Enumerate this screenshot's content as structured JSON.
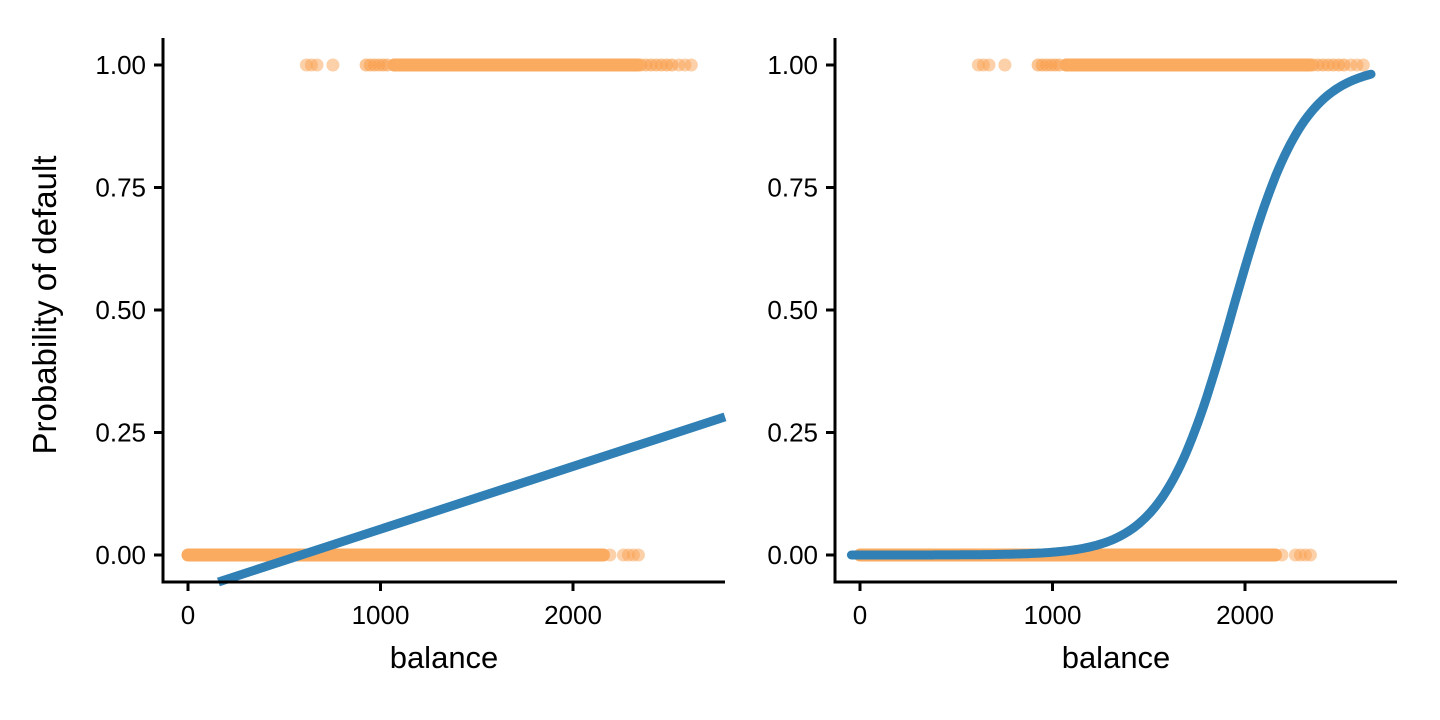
{
  "figure": {
    "description": "Two-panel scatter plot of default probability versus balance with fitted regression curves",
    "background": "#ffffff"
  },
  "colors": {
    "points_orange": "#F9A152",
    "points_dense_orange": "#FAAB5F",
    "fit_blue": "#3080B5",
    "axis_black": "#000000"
  },
  "chart_data": {
    "type": "scatter",
    "shared": {
      "xlabel": "balance",
      "ylabel": "Probability of default",
      "xlim": [
        -130,
        2790
      ],
      "ylim": [
        -0.055,
        1.055
      ],
      "xticks": {
        "values": [
          0,
          1000,
          2000
        ],
        "labels": [
          "0",
          "1000",
          "2000"
        ]
      },
      "yticks": {
        "values": [
          0,
          0.25,
          0.5,
          0.75,
          1
        ],
        "labels": [
          "0.00",
          "0.25",
          "0.50",
          "0.75",
          "1.00"
        ]
      },
      "grid": "off",
      "legend": "none",
      "points": {
        "defaulters": {
          "y": 1,
          "dense": [
            [
              1070,
              2338
            ]
          ],
          "clusters": [
            {
              "range": [
                925,
                1045
              ],
              "step": 22
            },
            {
              "range": [
                2352,
                2516
              ],
              "step": 27
            }
          ],
          "singles": [
            615,
            641,
            670,
            753,
            2550,
            2582,
            2615
          ]
        },
        "non_defaulters": {
          "y": 0,
          "dense": [
            [
              0,
              2158
            ]
          ],
          "clusters": [],
          "singles": [
            2192,
            2262,
            2288,
            2314,
            2340
          ]
        }
      }
    },
    "panels": [
      {
        "name": "linear",
        "fit": {
          "model": "linear",
          "intercept": -0.0752,
          "slope": 0.000128,
          "draw_range": [
            158,
            2790
          ]
        }
      },
      {
        "name": "logistic",
        "fit": {
          "model": "logistic",
          "beta0": -10.65,
          "beta1": 0.0055,
          "draw_range": [
            -45,
            2660
          ]
        }
      }
    ]
  }
}
